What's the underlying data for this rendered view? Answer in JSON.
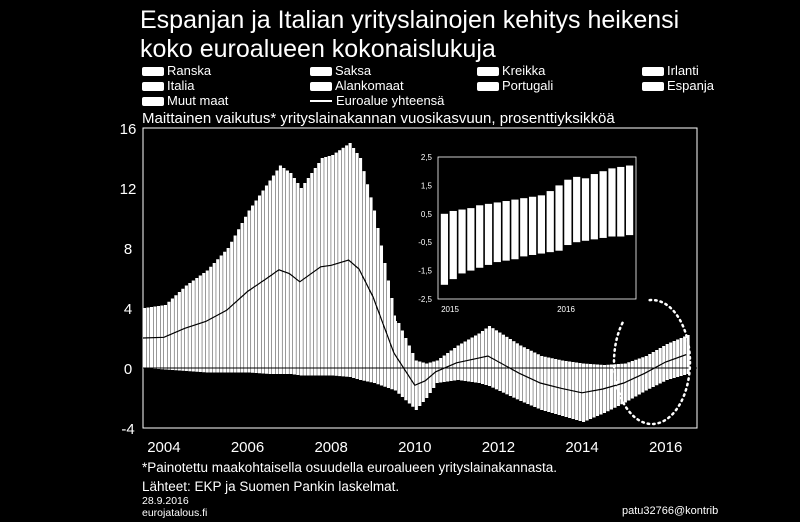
{
  "title_line1": "Espanjan ja Italian yrityslainojen kehitys heikensi",
  "title_line2": "koko euroalueen kokonaislukuja",
  "legend": [
    "Ranska",
    "Saksa",
    "Kreikka",
    "Irlanti",
    "Italia",
    "Alankomaat",
    "Portugali",
    "Espanja",
    "Muut maat",
    "Euroalue yhteensä"
  ],
  "subtitle": "Maittainen vaikutus* yrityslainakannan vuosikasvuun, prosenttiyksikköä",
  "footnote": "*Painotettu maakohtaisella osuudella euroalueen yrityslainakannasta.",
  "sources": "Lähteet: EKP ja Suomen Pankin laskelmat.",
  "date": "28.9.2016",
  "site": "eurojatalous.fi",
  "contrib": "patu32766@kontrib",
  "colors": {
    "background": "#000000",
    "bars": "#ffffff",
    "line": "#ffffff"
  },
  "chart_data": [
    {
      "type": "area",
      "x": [
        "2003-07",
        "2004-01",
        "2004-07",
        "2005-01",
        "2005-07",
        "2006-01",
        "2006-07",
        "2006-10",
        "2007-01",
        "2007-04",
        "2007-10",
        "2008-01",
        "2008-06",
        "2008-09",
        "2009-01",
        "2009-07",
        "2010-01",
        "2010-04",
        "2010-07",
        "2011-01",
        "2011-07",
        "2011-10",
        "2012-07",
        "2013-01",
        "2013-07",
        "2014-01",
        "2014-07",
        "2015-01",
        "2015-07",
        "2016-01",
        "2016-07"
      ],
      "upper": [
        4.0,
        4.2,
        5.5,
        6.5,
        8.0,
        10.5,
        12.5,
        13.5,
        13.0,
        12.0,
        14.0,
        14.2,
        15.0,
        14.0,
        10.5,
        3.5,
        0.5,
        0.3,
        0.5,
        1.5,
        2.3,
        2.8,
        1.5,
        0.8,
        0.5,
        0.3,
        0.2,
        0.3,
        0.8,
        1.6,
        2.2
      ],
      "lower": [
        0.0,
        -0.1,
        -0.2,
        -0.3,
        -0.3,
        -0.3,
        -0.4,
        -0.4,
        -0.4,
        -0.5,
        -0.5,
        -0.5,
        -0.6,
        -0.8,
        -1.0,
        -1.5,
        -2.8,
        -2.0,
        -1.0,
        -0.8,
        -1.0,
        -1.2,
        -2.2,
        -2.8,
        -3.2,
        -3.6,
        -3.0,
        -2.3,
        -1.5,
        -0.8,
        -0.4
      ],
      "ylim": [
        -4,
        16
      ],
      "yticks": [
        "-4",
        "0",
        "4",
        "8",
        "12",
        "16"
      ],
      "xticks": [
        "2004",
        "2006",
        "2008",
        "2010",
        "2012",
        "2014",
        "2016"
      ],
      "highlight": "ellipse"
    },
    {
      "type": "bar",
      "ylim": [
        -2.5,
        2.5
      ],
      "yticks": [
        "2,5",
        "1,5",
        "0,5",
        "-0,5",
        "-1,5",
        "-2,5"
      ],
      "xticks": [
        "2015",
        "2016"
      ],
      "top": [
        0.5,
        0.6,
        0.65,
        0.7,
        0.8,
        0.85,
        0.9,
        0.95,
        1.0,
        1.05,
        1.1,
        1.15,
        1.3,
        1.5,
        1.7,
        1.8,
        1.75,
        1.9,
        2.0,
        2.1,
        2.15,
        2.2
      ],
      "bottom": [
        -2.0,
        -1.8,
        -1.6,
        -1.5,
        -1.4,
        -1.3,
        -1.2,
        -1.15,
        -1.1,
        -1.0,
        -0.95,
        -0.9,
        -0.85,
        -0.8,
        -0.6,
        -0.5,
        -0.45,
        -0.4,
        -0.35,
        -0.3,
        -0.3,
        -0.25
      ]
    }
  ]
}
